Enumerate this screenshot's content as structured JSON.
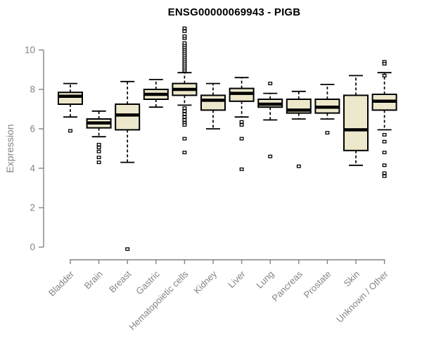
{
  "chart_data": {
    "type": "boxplot",
    "title": "ENSG00000069943 - PIGB",
    "ylabel": "Expression",
    "xlabel": "",
    "ylim": [
      0,
      10
    ],
    "yticks": [
      0,
      2,
      4,
      6,
      8,
      10
    ],
    "grid": false,
    "legend_position": "none",
    "colors": {
      "box_fill": "#EDE8CC",
      "box_stroke": "#000000",
      "whisker": "#000000",
      "axis": "#848484",
      "tick_text": "#848484",
      "title_text": "#000000",
      "background": "#ffffff"
    },
    "categories": [
      "Bladder",
      "Brain",
      "Breast",
      "Gastric",
      "Hematopoietic cells",
      "Kidney",
      "Liver",
      "Lung",
      "Pancreas",
      "Prostate",
      "Skin",
      "Unknown / Other"
    ],
    "boxes": [
      {
        "category": "Bladder",
        "whisker_low": 6.6,
        "q1": 7.25,
        "median": 7.65,
        "q3": 7.85,
        "whisker_high": 8.3,
        "outliers": [
          5.9
        ]
      },
      {
        "category": "Brain",
        "whisker_low": 5.6,
        "q1": 6.05,
        "median": 6.3,
        "q3": 6.5,
        "whisker_high": 6.9,
        "outliers": [
          5.2,
          5.05,
          4.85,
          4.55,
          4.3
        ]
      },
      {
        "category": "Breast",
        "whisker_low": 4.3,
        "q1": 5.95,
        "median": 6.7,
        "q3": 7.25,
        "whisker_high": 8.4,
        "outliers": [
          -0.1
        ]
      },
      {
        "category": "Gastric",
        "whisker_low": 7.1,
        "q1": 7.5,
        "median": 7.75,
        "q3": 8.0,
        "whisker_high": 8.5,
        "outliers": []
      },
      {
        "category": "Hematopoietic cells",
        "whisker_low": 7.2,
        "q1": 7.7,
        "median": 8.0,
        "q3": 8.3,
        "whisker_high": 8.85,
        "outliers": [
          8.95,
          9.05,
          9.15,
          9.25,
          9.35,
          9.45,
          9.55,
          9.65,
          9.75,
          9.85,
          9.95,
          10.05,
          10.15,
          10.25,
          10.35,
          10.6,
          10.7,
          10.95,
          11.1,
          7.05,
          6.9,
          6.75,
          6.6,
          6.45,
          6.3,
          6.2,
          5.5,
          4.8
        ]
      },
      {
        "category": "Kidney",
        "whisker_low": 6.0,
        "q1": 6.95,
        "median": 7.45,
        "q3": 7.7,
        "whisker_high": 8.3,
        "outliers": []
      },
      {
        "category": "Liver",
        "whisker_low": 6.6,
        "q1": 7.4,
        "median": 7.8,
        "q3": 8.05,
        "whisker_high": 8.6,
        "outliers": [
          6.35,
          6.2,
          5.5,
          3.95
        ]
      },
      {
        "category": "Lung",
        "whisker_low": 6.45,
        "q1": 7.1,
        "median": 7.25,
        "q3": 7.5,
        "whisker_high": 7.8,
        "outliers": [
          8.3,
          4.6
        ]
      },
      {
        "category": "Pancreas",
        "whisker_low": 6.5,
        "q1": 6.8,
        "median": 6.95,
        "q3": 7.5,
        "whisker_high": 7.9,
        "outliers": [
          4.1
        ]
      },
      {
        "category": "Prostate",
        "whisker_low": 6.5,
        "q1": 6.8,
        "median": 7.1,
        "q3": 7.5,
        "whisker_high": 8.25,
        "outliers": [
          5.8
        ]
      },
      {
        "category": "Skin",
        "whisker_low": 4.15,
        "q1": 4.9,
        "median": 5.95,
        "q3": 7.7,
        "whisker_high": 8.7,
        "outliers": []
      },
      {
        "category": "Unknown / Other",
        "whisker_low": 5.95,
        "q1": 6.95,
        "median": 7.4,
        "q3": 7.75,
        "whisker_high": 8.85,
        "outliers": [
          9.4,
          9.3,
          8.7,
          5.7,
          5.35,
          4.8,
          4.15,
          3.75,
          3.6
        ]
      }
    ]
  }
}
